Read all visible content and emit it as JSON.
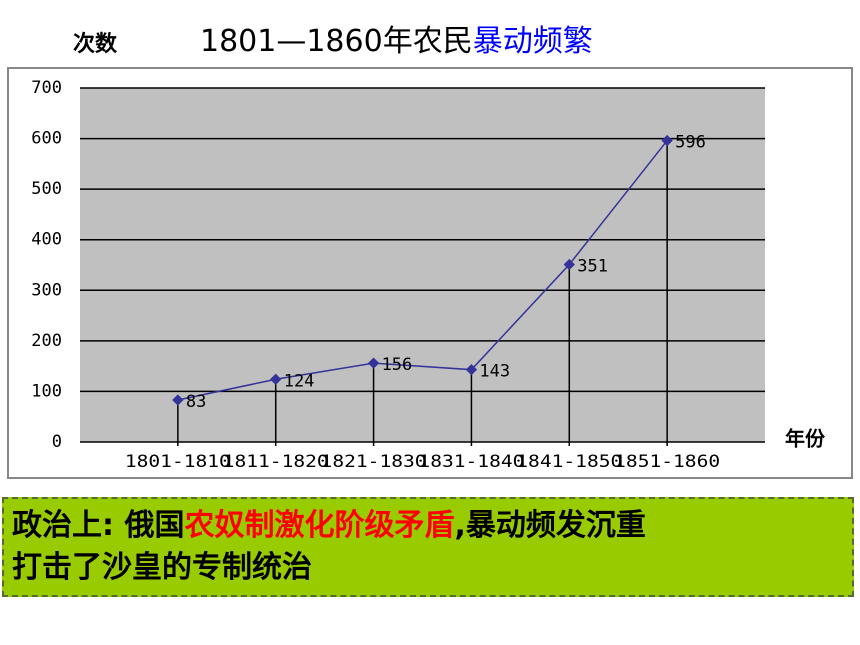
{
  "chart_data": {
    "type": "line",
    "title": "1801—1860年农民",
    "title_highlight": "暴动频繁",
    "title_highlight_color": "#0000ff",
    "ylabel": "次数",
    "xlabel": "年份",
    "categories": [
      "1801-1810",
      "1811-1820",
      "1821-1830",
      "1831-1840",
      "1841-1850",
      "1851-1860"
    ],
    "values": [
      83,
      124,
      156,
      143,
      351,
      596
    ],
    "color": "#333399",
    "ylim": [
      0,
      700
    ],
    "yticks": [
      0,
      100,
      200,
      300,
      400,
      500,
      600,
      700
    ],
    "grid": true
  },
  "note": {
    "line1": [
      "政治上: 俄国",
      "农奴制激化阶级矛盾",
      ",暴动频发沉重"
    ],
    "line2": "打击了沙皇的专制统治",
    "highlight_color": "#ff0000"
  }
}
